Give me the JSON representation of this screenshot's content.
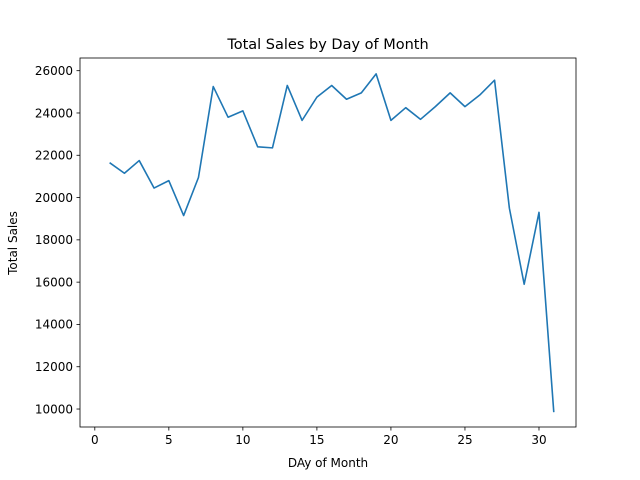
{
  "chart_data": {
    "type": "line",
    "title": "Total Sales by Day of Month",
    "xlabel": "DAy of Month",
    "ylabel": "Total Sales",
    "xlim": [
      -1,
      32.5
    ],
    "ylim": [
      9150,
      26600
    ],
    "xticks": [
      0,
      5,
      10,
      15,
      20,
      25,
      30
    ],
    "yticks": [
      10000,
      12000,
      14000,
      16000,
      18000,
      20000,
      22000,
      24000,
      26000
    ],
    "grid": false,
    "series": [
      {
        "color": "#1f77b4",
        "x": [
          1,
          2,
          3,
          4,
          5,
          6,
          7,
          8,
          9,
          10,
          11,
          12,
          13,
          14,
          15,
          16,
          17,
          18,
          19,
          20,
          21,
          22,
          23,
          24,
          25,
          26,
          27,
          28,
          29,
          30,
          31
        ],
        "values": [
          21650,
          21150,
          21750,
          20450,
          20800,
          19150,
          20950,
          25250,
          23800,
          24100,
          22400,
          22350,
          25300,
          23650,
          24750,
          25300,
          24650,
          24950,
          25850,
          23650,
          24250,
          23700,
          24300,
          24950,
          24300,
          24850,
          25550,
          19500,
          15900,
          19300,
          9850
        ]
      }
    ]
  }
}
